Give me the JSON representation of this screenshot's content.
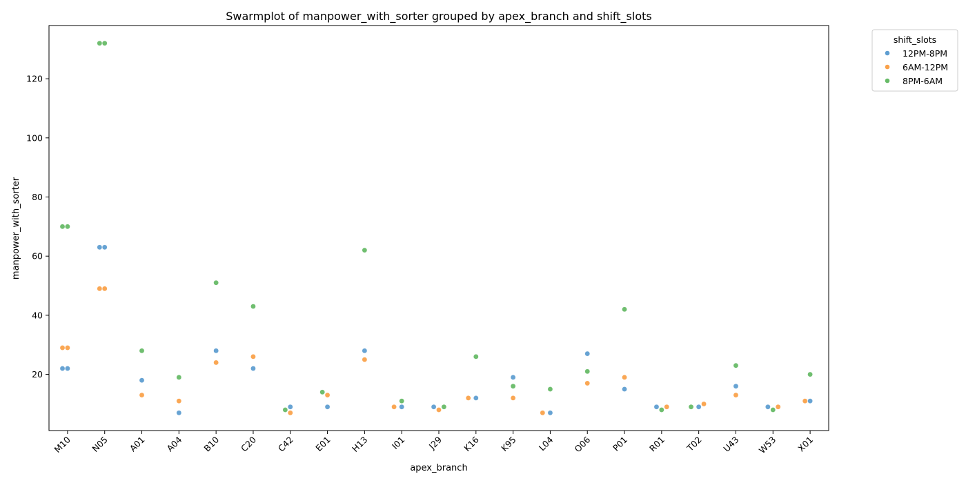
{
  "chart_data": {
    "type": "scatter",
    "title": "Swarmplot of manpower_with_sorter grouped by apex_branch and shift_slots",
    "xlabel": "apex_branch",
    "ylabel": "manpower_with_sorter",
    "ylim": [
      1,
      138
    ],
    "yticks": [
      20,
      40,
      60,
      80,
      100,
      120
    ],
    "grid": false,
    "legend": {
      "title": "shift_slots",
      "placement": "outside-top-right"
    },
    "categories": [
      "M10",
      "N05",
      "A01",
      "A04",
      "B10",
      "C20",
      "C42",
      "E01",
      "H13",
      "I01",
      "J29",
      "K16",
      "K95",
      "L04",
      "O06",
      "P01",
      "R01",
      "T02",
      "U43",
      "W53",
      "X01"
    ],
    "series": [
      {
        "name": "12PM-8PM",
        "color": "#5f9ed1",
        "points": [
          {
            "category": "M10",
            "values": [
              22,
              22
            ]
          },
          {
            "category": "N05",
            "values": [
              63,
              63
            ]
          },
          {
            "category": "A01",
            "values": [
              18
            ]
          },
          {
            "category": "A04",
            "values": [
              7
            ]
          },
          {
            "category": "B10",
            "values": [
              28
            ]
          },
          {
            "category": "C20",
            "values": [
              22
            ]
          },
          {
            "category": "C42",
            "values": [
              9
            ]
          },
          {
            "category": "E01",
            "values": [
              9
            ]
          },
          {
            "category": "H13",
            "values": [
              28
            ]
          },
          {
            "category": "I01",
            "values": [
              9
            ]
          },
          {
            "category": "J29",
            "values": [
              9
            ]
          },
          {
            "category": "K16",
            "values": [
              12
            ]
          },
          {
            "category": "K95",
            "values": [
              19
            ]
          },
          {
            "category": "L04",
            "values": [
              7
            ]
          },
          {
            "category": "O06",
            "values": [
              27
            ]
          },
          {
            "category": "P01",
            "values": [
              15
            ]
          },
          {
            "category": "R01",
            "values": [
              9
            ]
          },
          {
            "category": "T02",
            "values": [
              9
            ]
          },
          {
            "category": "U43",
            "values": [
              16
            ]
          },
          {
            "category": "W53",
            "values": [
              9
            ]
          },
          {
            "category": "X01",
            "values": [
              11
            ]
          }
        ]
      },
      {
        "name": "6AM-12PM",
        "color": "#faa24b",
        "points": [
          {
            "category": "M10",
            "values": [
              29,
              29
            ]
          },
          {
            "category": "N05",
            "values": [
              49,
              49
            ]
          },
          {
            "category": "A01",
            "values": [
              13
            ]
          },
          {
            "category": "A04",
            "values": [
              11
            ]
          },
          {
            "category": "B10",
            "values": [
              24
            ]
          },
          {
            "category": "C20",
            "values": [
              26
            ]
          },
          {
            "category": "C42",
            "values": [
              7
            ]
          },
          {
            "category": "E01",
            "values": [
              13
            ]
          },
          {
            "category": "H13",
            "values": [
              25
            ]
          },
          {
            "category": "I01",
            "values": [
              9
            ]
          },
          {
            "category": "J29",
            "values": [
              8
            ]
          },
          {
            "category": "K16",
            "values": [
              12
            ]
          },
          {
            "category": "K95",
            "values": [
              12
            ]
          },
          {
            "category": "L04",
            "values": [
              7
            ]
          },
          {
            "category": "O06",
            "values": [
              17
            ]
          },
          {
            "category": "P01",
            "values": [
              19
            ]
          },
          {
            "category": "R01",
            "values": [
              9
            ]
          },
          {
            "category": "T02",
            "values": [
              10
            ]
          },
          {
            "category": "U43",
            "values": [
              13
            ]
          },
          {
            "category": "W53",
            "values": [
              9
            ]
          },
          {
            "category": "X01",
            "values": [
              11
            ]
          }
        ]
      },
      {
        "name": "8PM-6AM",
        "color": "#67bb67",
        "points": [
          {
            "category": "M10",
            "values": [
              70,
              70
            ]
          },
          {
            "category": "N05",
            "values": [
              132,
              132
            ]
          },
          {
            "category": "A01",
            "values": [
              28
            ]
          },
          {
            "category": "A04",
            "values": [
              19
            ]
          },
          {
            "category": "B10",
            "values": [
              51
            ]
          },
          {
            "category": "C20",
            "values": [
              43
            ]
          },
          {
            "category": "C42",
            "values": [
              8
            ]
          },
          {
            "category": "E01",
            "values": [
              14
            ]
          },
          {
            "category": "H13",
            "values": [
              62
            ]
          },
          {
            "category": "I01",
            "values": [
              11
            ]
          },
          {
            "category": "J29",
            "values": [
              9
            ]
          },
          {
            "category": "K16",
            "values": [
              26
            ]
          },
          {
            "category": "K95",
            "values": [
              16
            ]
          },
          {
            "category": "L04",
            "values": [
              15
            ]
          },
          {
            "category": "O06",
            "values": [
              21
            ]
          },
          {
            "category": "P01",
            "values": [
              42
            ]
          },
          {
            "category": "R01",
            "values": [
              8
            ]
          },
          {
            "category": "T02",
            "values": [
              9
            ]
          },
          {
            "category": "U43",
            "values": [
              23
            ]
          },
          {
            "category": "W53",
            "values": [
              8
            ]
          },
          {
            "category": "X01",
            "values": [
              20
            ]
          }
        ]
      }
    ]
  }
}
